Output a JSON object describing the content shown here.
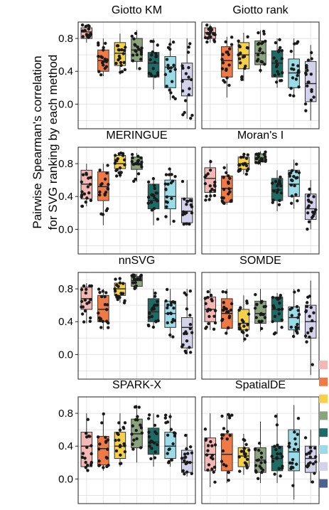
{
  "chart_data": {
    "type": "box",
    "ylabel_line1": "Pairwise Spearman's correlation",
    "ylabel_line2": "for SVG ranking by each method",
    "ylim": [
      -0.3,
      1.0
    ],
    "yticks": [
      "0.0",
      "0.4",
      "0.8"
    ],
    "ytick_values": [
      0.0,
      0.4,
      0.8
    ],
    "grid": true,
    "legend_position": "right",
    "legend_labels_visible": false,
    "group_colors": [
      "#f4b8b4",
      "#f07a45",
      "#f5d14a",
      "#8aa57d",
      "#1d6b64",
      "#9adbe6",
      "#d4d2ea",
      "#4f6191"
    ],
    "panels": [
      {
        "title": "Giotto KM",
        "boxes": [
          {
            "q1": 0.8,
            "median": 0.88,
            "q3": 0.93,
            "lo": 0.75,
            "hi": 0.97
          },
          {
            "q1": 0.4,
            "median": 0.53,
            "q3": 0.66,
            "lo": 0.34,
            "hi": 0.8
          },
          {
            "q1": 0.47,
            "median": 0.62,
            "q3": 0.75,
            "lo": 0.36,
            "hi": 0.86
          },
          {
            "q1": 0.52,
            "median": 0.66,
            "q3": 0.8,
            "lo": 0.42,
            "hi": 0.9
          },
          {
            "q1": 0.33,
            "median": 0.5,
            "q3": 0.63,
            "lo": 0.18,
            "hi": 0.8
          },
          {
            "q1": 0.2,
            "median": 0.45,
            "q3": 0.58,
            "lo": 0.05,
            "hi": 0.8
          },
          {
            "q1": 0.1,
            "median": 0.3,
            "q3": 0.5,
            "lo": -0.18,
            "hi": 0.8
          }
        ]
      },
      {
        "title": "Giotto rank",
        "boxes": [
          {
            "q1": 0.8,
            "median": 0.87,
            "q3": 0.93,
            "lo": 0.75,
            "hi": 0.97
          },
          {
            "q1": 0.33,
            "median": 0.53,
            "q3": 0.7,
            "lo": 0.08,
            "hi": 0.82
          },
          {
            "q1": 0.43,
            "median": 0.6,
            "q3": 0.75,
            "lo": 0.28,
            "hi": 0.87
          },
          {
            "q1": 0.48,
            "median": 0.62,
            "q3": 0.77,
            "lo": 0.38,
            "hi": 0.9
          },
          {
            "q1": 0.33,
            "median": 0.5,
            "q3": 0.65,
            "lo": 0.2,
            "hi": 0.8
          },
          {
            "q1": 0.2,
            "median": 0.38,
            "q3": 0.55,
            "lo": 0.1,
            "hi": 0.8
          },
          {
            "q1": 0.03,
            "median": 0.25,
            "q3": 0.52,
            "lo": -0.2,
            "hi": 0.72
          }
        ]
      },
      {
        "title": "MERINGUE",
        "boxes": [
          {
            "q1": 0.37,
            "median": 0.55,
            "q3": 0.72,
            "lo": 0.28,
            "hi": 0.8
          },
          {
            "q1": 0.35,
            "median": 0.52,
            "q3": 0.7,
            "lo": 0.05,
            "hi": 0.8
          },
          {
            "q1": 0.74,
            "median": 0.8,
            "q3": 0.9,
            "lo": 0.63,
            "hi": 0.93
          },
          {
            "q1": 0.73,
            "median": 0.8,
            "q3": 0.88,
            "lo": 0.58,
            "hi": 0.93
          },
          {
            "q1": 0.25,
            "median": 0.35,
            "q3": 0.55,
            "lo": 0.05,
            "hi": 0.63
          },
          {
            "q1": 0.25,
            "median": 0.4,
            "q3": 0.6,
            "lo": 0.05,
            "hi": 0.75
          },
          {
            "q1": 0.08,
            "median": 0.22,
            "q3": 0.38,
            "lo": 0.05,
            "hi": 0.6
          }
        ]
      },
      {
        "title": "Moran's I",
        "boxes": [
          {
            "q1": 0.45,
            "median": 0.62,
            "q3": 0.75,
            "lo": 0.35,
            "hi": 0.85
          },
          {
            "q1": 0.33,
            "median": 0.5,
            "q3": 0.65,
            "lo": 0.3,
            "hi": 0.8
          },
          {
            "q1": 0.73,
            "median": 0.8,
            "q3": 0.88,
            "lo": 0.67,
            "hi": 0.93
          },
          {
            "q1": 0.82,
            "median": 0.87,
            "q3": 0.92,
            "lo": 0.78,
            "hi": 0.95
          },
          {
            "q1": 0.35,
            "median": 0.48,
            "q3": 0.62,
            "lo": 0.22,
            "hi": 0.72
          },
          {
            "q1": 0.4,
            "median": 0.55,
            "q3": 0.72,
            "lo": 0.25,
            "hi": 0.85
          },
          {
            "q1": 0.12,
            "median": 0.25,
            "q3": 0.43,
            "lo": 0.0,
            "hi": 0.6
          }
        ]
      },
      {
        "title": "nnSVG",
        "boxes": [
          {
            "q1": 0.55,
            "median": 0.68,
            "q3": 0.82,
            "lo": 0.38,
            "hi": 0.87
          },
          {
            "q1": 0.4,
            "median": 0.55,
            "q3": 0.72,
            "lo": 0.3,
            "hi": 0.8
          },
          {
            "q1": 0.72,
            "median": 0.8,
            "q3": 0.87,
            "lo": 0.63,
            "hi": 0.93
          },
          {
            "q1": 0.83,
            "median": 0.9,
            "q3": 0.95,
            "lo": 0.8,
            "hi": 0.98
          },
          {
            "q1": 0.4,
            "median": 0.52,
            "q3": 0.68,
            "lo": 0.32,
            "hi": 0.8
          },
          {
            "q1": 0.33,
            "median": 0.5,
            "q3": 0.65,
            "lo": 0.2,
            "hi": 0.8
          },
          {
            "q1": 0.08,
            "median": 0.33,
            "q3": 0.45,
            "lo": 0.0,
            "hi": 0.8
          }
        ]
      },
      {
        "title": "SOMDE",
        "boxes": [
          {
            "q1": 0.4,
            "median": 0.55,
            "q3": 0.7,
            "lo": 0.3,
            "hi": 0.8
          },
          {
            "q1": 0.32,
            "median": 0.5,
            "q3": 0.68,
            "lo": 0.25,
            "hi": 0.8
          },
          {
            "q1": 0.3,
            "median": 0.38,
            "q3": 0.55,
            "lo": 0.15,
            "hi": 0.72
          },
          {
            "q1": 0.38,
            "median": 0.5,
            "q3": 0.65,
            "lo": 0.28,
            "hi": 0.8
          },
          {
            "q1": 0.4,
            "median": 0.55,
            "q3": 0.7,
            "lo": 0.25,
            "hi": 0.75
          },
          {
            "q1": 0.3,
            "median": 0.45,
            "q3": 0.58,
            "lo": 0.2,
            "hi": 0.8
          },
          {
            "q1": 0.2,
            "median": 0.4,
            "q3": 0.6,
            "lo": -0.25,
            "hi": 0.9
          }
        ]
      },
      {
        "title": "SPARK-X",
        "boxes": [
          {
            "q1": 0.15,
            "median": 0.4,
            "q3": 0.57,
            "lo": 0.1,
            "hi": 0.8
          },
          {
            "q1": 0.17,
            "median": 0.37,
            "q3": 0.52,
            "lo": 0.1,
            "hi": 0.8
          },
          {
            "q1": 0.25,
            "median": 0.4,
            "q3": 0.57,
            "lo": 0.15,
            "hi": 0.8
          },
          {
            "q1": 0.38,
            "median": 0.55,
            "q3": 0.73,
            "lo": 0.2,
            "hi": 0.9
          },
          {
            "q1": 0.3,
            "median": 0.45,
            "q3": 0.62,
            "lo": 0.15,
            "hi": 0.8
          },
          {
            "q1": 0.25,
            "median": 0.4,
            "q3": 0.57,
            "lo": 0.15,
            "hi": 0.8
          },
          {
            "q1": 0.08,
            "median": 0.2,
            "q3": 0.35,
            "lo": 0.03,
            "hi": 0.55
          }
        ]
      },
      {
        "title": "SpatialDE",
        "boxes": [
          {
            "q1": 0.1,
            "median": 0.3,
            "q3": 0.5,
            "lo": -0.1,
            "hi": 0.8
          },
          {
            "q1": 0.1,
            "median": 0.3,
            "q3": 0.55,
            "lo": -0.05,
            "hi": 0.8
          },
          {
            "q1": 0.15,
            "median": 0.28,
            "q3": 0.38,
            "lo": 0.05,
            "hi": 0.55
          },
          {
            "q1": 0.08,
            "median": 0.23,
            "q3": 0.38,
            "lo": -0.05,
            "hi": 0.7
          },
          {
            "q1": 0.1,
            "median": 0.25,
            "q3": 0.4,
            "lo": -0.05,
            "hi": 0.8
          },
          {
            "q1": 0.1,
            "median": 0.33,
            "q3": 0.6,
            "lo": -0.25,
            "hi": 0.9
          },
          {
            "q1": 0.08,
            "median": 0.25,
            "q3": 0.4,
            "lo": -0.05,
            "hi": 0.6
          }
        ]
      }
    ]
  }
}
